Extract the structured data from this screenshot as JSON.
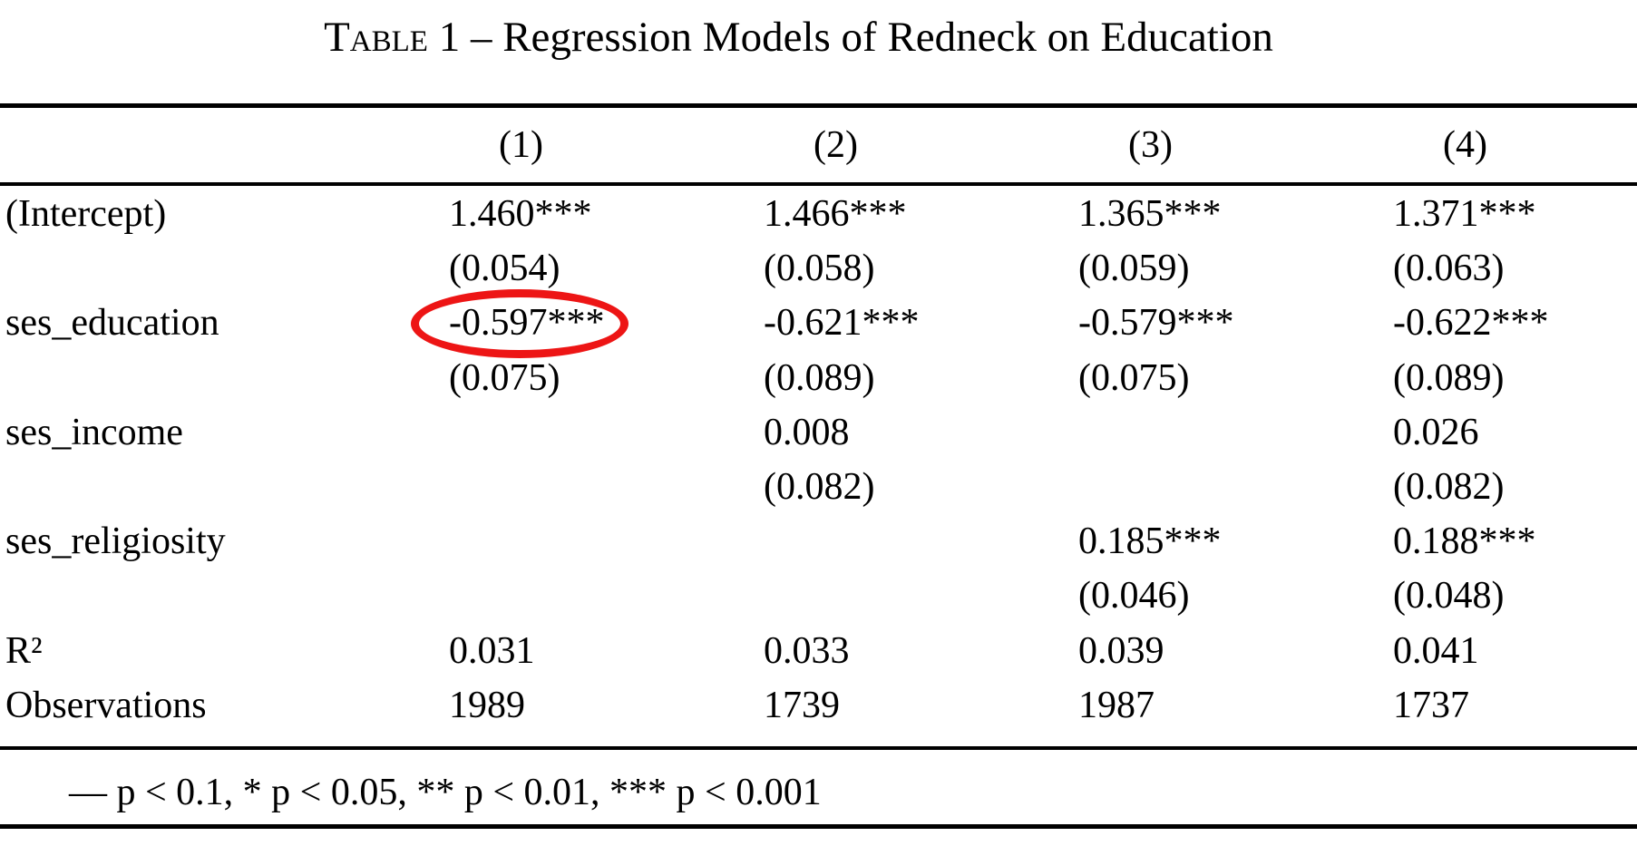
{
  "title": {
    "prefix": "Table",
    "rest": " 1 – Regression Models of Redneck on Education"
  },
  "header": {
    "labels": [
      "(1)",
      "(2)",
      "(3)",
      "(4)"
    ]
  },
  "table": {
    "rows": [
      {
        "label": "(Intercept)",
        "cells": [
          "1.460***",
          "1.466***",
          "1.365***",
          "1.371***"
        ]
      },
      {
        "label": "",
        "cells": [
          "(0.054)",
          "(0.058)",
          "(0.059)",
          "(0.063)"
        ]
      },
      {
        "label": "ses_education",
        "cells": [
          "-0.597***",
          "-0.621***",
          "-0.579***",
          "-0.622***"
        ]
      },
      {
        "label": "",
        "cells": [
          "(0.075)",
          "(0.089)",
          "(0.075)",
          "(0.089)"
        ]
      },
      {
        "label": "ses_income",
        "cells": [
          "",
          "0.008",
          "",
          "0.026"
        ]
      },
      {
        "label": "",
        "cells": [
          "",
          "(0.082)",
          "",
          "(0.082)"
        ]
      },
      {
        "label": "ses_religiosity",
        "cells": [
          "",
          "",
          "0.185***",
          "0.188***"
        ]
      },
      {
        "label": "",
        "cells": [
          "",
          "",
          "(0.046)",
          "(0.048)"
        ]
      },
      {
        "label": "R²",
        "cells": [
          "0.031",
          "0.033",
          "0.039",
          "0.041"
        ]
      },
      {
        "label": "Observations",
        "cells": [
          "1989",
          "1739",
          "1987",
          "1737"
        ]
      }
    ]
  },
  "annotation": {
    "circled_value": "-0.597***",
    "circled_row": "ses_education",
    "circled_column": "(1)",
    "color": "#ed1515"
  },
  "note": "—  p < 0.1, * p < 0.05, ** p < 0.01, *** p < 0.001"
}
